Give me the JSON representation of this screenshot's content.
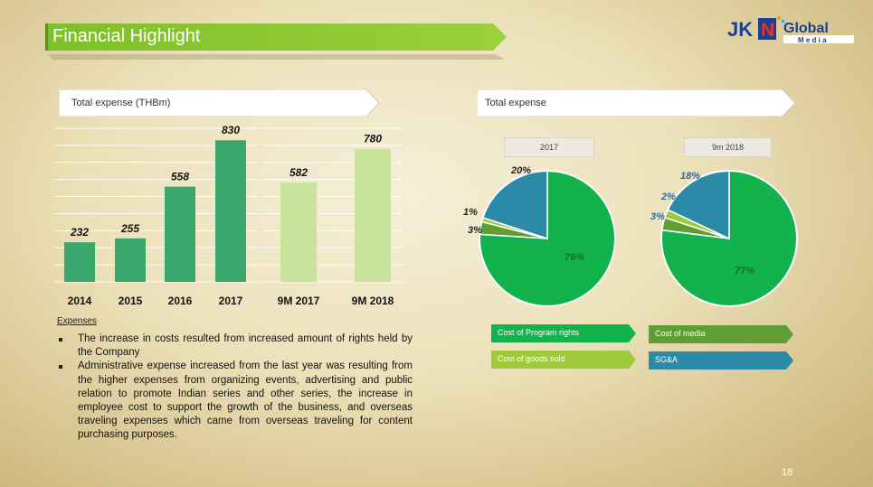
{
  "header": {
    "title": "Financial Highlight"
  },
  "logo": {
    "word_jk": "JK",
    "letter_n": "N",
    "word_global": "Global",
    "word_media": "M e d i a"
  },
  "bar_section": {
    "label": "Total expense (THBm)"
  },
  "pie_section": {
    "label": "Total expense",
    "pie_2017_label": "2017",
    "pie_9m2018_label": "9m 2018"
  },
  "chart_data": [
    {
      "type": "bar",
      "title": "Total expense (THBm)",
      "categories": [
        "2014",
        "2015",
        "2016",
        "2017",
        "9M 2017",
        "9M 2018"
      ],
      "values": [
        232,
        255,
        558,
        830,
        582,
        780
      ],
      "ylim": [
        0,
        900
      ],
      "grid": true,
      "colors": [
        "#3aa86d",
        "#3aa86d",
        "#3aa86d",
        "#3aa86d",
        "#c8e39a",
        "#c8e39a"
      ]
    },
    {
      "type": "pie",
      "title": "2017",
      "labels": [
        "Cost of Program rights",
        "Cost of media",
        "Cost of goods sold",
        "SG&A"
      ],
      "values": [
        76,
        3,
        1,
        20
      ],
      "display": [
        "76%",
        "3%",
        "1%",
        "20%"
      ]
    },
    {
      "type": "pie",
      "title": "9m 2018",
      "labels": [
        "Cost of Program rights",
        "Cost of media",
        "Cost of goods sold",
        "SG&A"
      ],
      "values": [
        77,
        3,
        2,
        18
      ],
      "display": [
        "77%",
        "3%",
        "2%",
        "18%"
      ]
    }
  ],
  "legend": [
    {
      "label": "Cost of Program rights",
      "color": "#12b24d"
    },
    {
      "label": "Cost of media",
      "color": "#5e9e35"
    },
    {
      "label": "Cost of goods sold",
      "color": "#9ecb3c"
    },
    {
      "label": "SG&A",
      "color": "#2b8aa8"
    }
  ],
  "expenses": {
    "title": "Expenses",
    "bullets": [
      "The increase in costs resulted from increased amount of rights held by the Company",
      "Administrative expense increased from the last year was resulting from the higher expenses from organizing events, advertising and public relation to promote Indian series and other series, the increase in employee cost to support the growth of the business, and overseas traveling expenses which came from overseas traveling for content purchasing purposes."
    ]
  },
  "page_number": "18"
}
